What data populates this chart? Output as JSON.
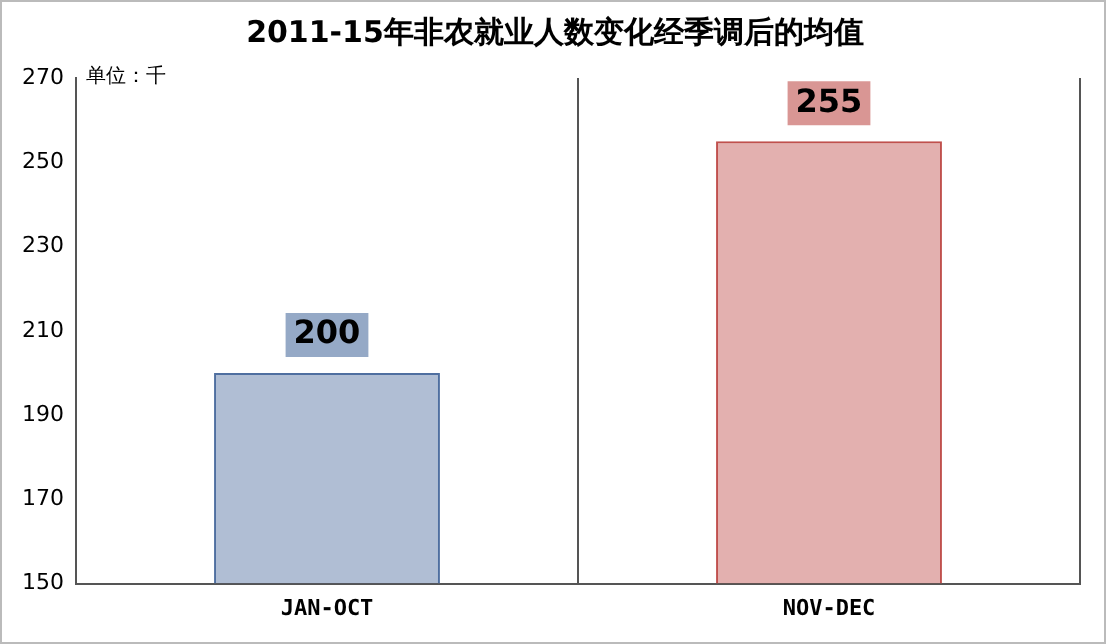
{
  "chart_data": {
    "type": "bar",
    "title": "2011-15年非农就业人数变化经季调后的均值",
    "categories": [
      "JAN-OCT",
      "NOV-DEC"
    ],
    "values": [
      200,
      255
    ],
    "colors": [
      "#4f6fa0",
      "#c0504d"
    ],
    "ylim": [
      150,
      270
    ],
    "yticks": [
      150,
      170,
      190,
      210,
      230,
      250,
      270
    ],
    "grid": "x",
    "data_labels": true,
    "annotations": [
      "单位：千"
    ]
  }
}
